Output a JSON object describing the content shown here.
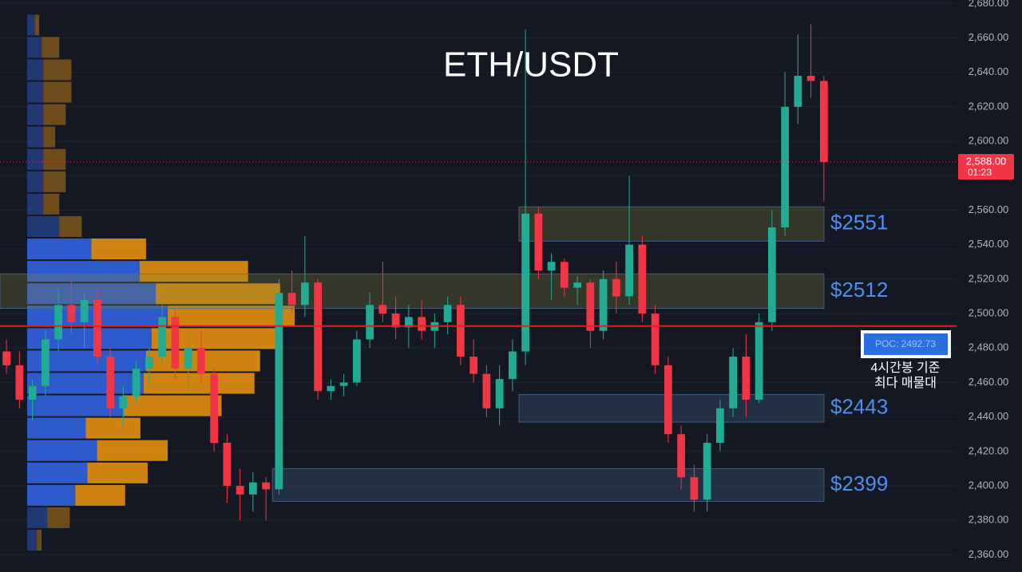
{
  "chart_data": {
    "type": "candlestick",
    "title": "ETH/USDT",
    "ylim": [
      2350,
      2682
    ],
    "yticks": [
      {
        "value": 2360,
        "label": "2,360.00"
      },
      {
        "value": 2380,
        "label": "2,380.00"
      },
      {
        "value": 2400,
        "label": "2,400.00"
      },
      {
        "value": 2420,
        "label": "2,420.00"
      },
      {
        "value": 2440,
        "label": "2,440.00"
      },
      {
        "value": 2460,
        "label": "2,460.00"
      },
      {
        "value": 2480,
        "label": "2,480.00"
      },
      {
        "value": 2500,
        "label": "2,500.00"
      },
      {
        "value": 2520,
        "label": "2,520.00"
      },
      {
        "value": 2540,
        "label": "2,540.00"
      },
      {
        "value": 2560,
        "label": "2,560.00"
      },
      {
        "value": 2580,
        "label": "2,580.00"
      },
      {
        "value": 2600,
        "label": "2,600.00"
      },
      {
        "value": 2620,
        "label": "2,620.00"
      },
      {
        "value": 2640,
        "label": "2,640.00"
      },
      {
        "value": 2660,
        "label": "2,660.00"
      },
      {
        "value": 2680,
        "label": "2,680.00"
      }
    ],
    "up_color": "#22ab94",
    "down_color": "#f23645",
    "candles": [
      [
        2478,
        2485,
        2465,
        2470
      ],
      [
        2470,
        2478,
        2445,
        2450
      ],
      [
        2450,
        2462,
        2438,
        2458
      ],
      [
        2458,
        2490,
        2452,
        2485
      ],
      [
        2485,
        2515,
        2478,
        2505
      ],
      [
        2505,
        2520,
        2488,
        2495
      ],
      [
        2495,
        2512,
        2480,
        2508
      ],
      [
        2508,
        2515,
        2470,
        2475
      ],
      [
        2475,
        2480,
        2440,
        2445
      ],
      [
        2445,
        2458,
        2435,
        2452
      ],
      [
        2452,
        2472,
        2448,
        2468
      ],
      [
        2468,
        2480,
        2460,
        2475
      ],
      [
        2475,
        2505,
        2470,
        2498
      ],
      [
        2498,
        2502,
        2462,
        2468
      ],
      [
        2468,
        2485,
        2455,
        2480
      ],
      [
        2480,
        2490,
        2460,
        2465
      ],
      [
        2465,
        2468,
        2420,
        2425
      ],
      [
        2425,
        2430,
        2390,
        2400
      ],
      [
        2400,
        2410,
        2380,
        2395
      ],
      [
        2395,
        2408,
        2385,
        2402
      ],
      [
        2402,
        2405,
        2380,
        2398
      ],
      [
        2398,
        2520,
        2395,
        2512
      ],
      [
        2512,
        2525,
        2500,
        2505
      ],
      [
        2505,
        2545,
        2498,
        2518
      ],
      [
        2518,
        2520,
        2450,
        2455
      ],
      [
        2455,
        2462,
        2450,
        2458
      ],
      [
        2458,
        2465,
        2452,
        2460
      ],
      [
        2460,
        2490,
        2458,
        2485
      ],
      [
        2485,
        2512,
        2480,
        2505
      ],
      [
        2505,
        2530,
        2495,
        2500
      ],
      [
        2500,
        2510,
        2485,
        2492
      ],
      [
        2492,
        2505,
        2480,
        2498
      ],
      [
        2498,
        2508,
        2485,
        2490
      ],
      [
        2490,
        2500,
        2480,
        2495
      ],
      [
        2495,
        2510,
        2488,
        2505
      ],
      [
        2505,
        2510,
        2470,
        2475
      ],
      [
        2475,
        2485,
        2460,
        2465
      ],
      [
        2465,
        2470,
        2440,
        2445
      ],
      [
        2445,
        2470,
        2435,
        2462
      ],
      [
        2462,
        2485,
        2455,
        2478
      ],
      [
        2478,
        2665,
        2470,
        2558
      ],
      [
        2558,
        2562,
        2520,
        2525
      ],
      [
        2525,
        2535,
        2508,
        2530
      ],
      [
        2530,
        2532,
        2510,
        2515
      ],
      [
        2515,
        2522,
        2505,
        2518
      ],
      [
        2518,
        2520,
        2480,
        2490
      ],
      [
        2490,
        2525,
        2485,
        2520
      ],
      [
        2520,
        2530,
        2500,
        2510
      ],
      [
        2510,
        2580,
        2505,
        2540
      ],
      [
        2540,
        2545,
        2495,
        2500
      ],
      [
        2500,
        2505,
        2465,
        2470
      ],
      [
        2470,
        2475,
        2425,
        2430
      ],
      [
        2430,
        2435,
        2398,
        2405
      ],
      [
        2405,
        2412,
        2385,
        2392
      ],
      [
        2392,
        2430,
        2385,
        2425
      ],
      [
        2425,
        2450,
        2420,
        2445
      ],
      [
        2445,
        2480,
        2440,
        2475
      ],
      [
        2475,
        2488,
        2440,
        2450
      ],
      [
        2450,
        2500,
        2448,
        2495
      ],
      [
        2495,
        2560,
        2490,
        2550
      ],
      [
        2550,
        2640,
        2545,
        2620
      ],
      [
        2620,
        2662,
        2610,
        2638
      ],
      [
        2638,
        2668,
        2625,
        2635
      ],
      [
        2635,
        2638,
        2565,
        2588
      ]
    ],
    "volume_profile": {
      "bins": [
        2362,
        2375,
        2388,
        2401,
        2414,
        2427,
        2440,
        2453,
        2466,
        2479,
        2492,
        2505,
        2518,
        2531,
        2544,
        2557,
        2570,
        2583,
        2596,
        2609,
        2622,
        2635,
        2648,
        2661,
        2674
      ],
      "up": [
        12,
        25,
        60,
        75,
        87,
        73,
        120,
        145,
        148,
        155,
        175,
        160,
        140,
        80,
        40,
        20,
        20,
        20,
        20,
        20,
        20,
        20,
        18,
        10
      ],
      "down": [
        6,
        28,
        62,
        75,
        88,
        68,
        122,
        138,
        142,
        155,
        158,
        155,
        135,
        68,
        28,
        20,
        28,
        28,
        15,
        28,
        35,
        35,
        22,
        5
      ],
      "up_color": "#2e5fd6",
      "down_color": "#d98a12"
    },
    "zones": [
      {
        "label": "$2551",
        "low": 2542,
        "high": 2562,
        "from": 40,
        "color": "#8a8a3a"
      },
      {
        "label": "$2512",
        "low": 2503,
        "high": 2523,
        "from": 0,
        "color": "#8a8a3a"
      },
      {
        "label": "$2443",
        "low": 2437,
        "high": 2453,
        "from": 40,
        "color": "#4a6a9a"
      },
      {
        "label": "$2399",
        "low": 2391,
        "high": 2410,
        "from": 21,
        "color": "#4a6a9a"
      }
    ],
    "poc": {
      "value": 2492.73,
      "label": "POC: 2492.73",
      "note": [
        "4시간봉 기준",
        "최다 매물대"
      ],
      "color": "#e0201c"
    },
    "price_line": {
      "value": 2588,
      "label": "2,588.00",
      "timer": "01:23",
      "color": "#f23645"
    }
  }
}
